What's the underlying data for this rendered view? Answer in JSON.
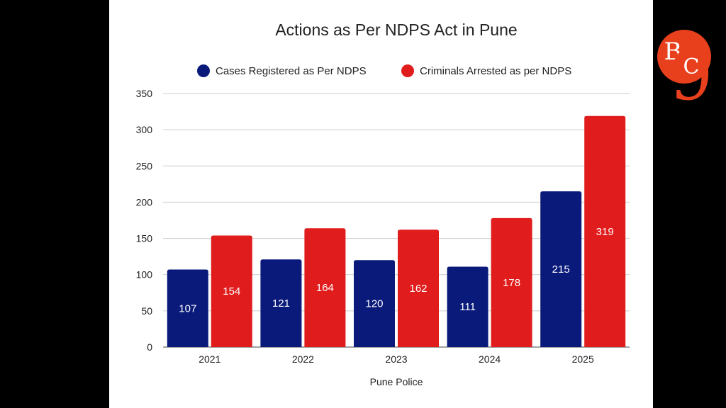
{
  "chart_data": {
    "type": "bar",
    "title": "Actions as Per NDPS Act in Pune",
    "xlabel": "Pune Police",
    "ylabel": "",
    "categories": [
      "2021",
      "2022",
      "2023",
      "2024",
      "2025"
    ],
    "series": [
      {
        "name": "Cases Registered as Per NDPS",
        "values": [
          107,
          121,
          120,
          111,
          215
        ],
        "color": "#0a1a7a"
      },
      {
        "name": "Criminals Arrested as per NDPS",
        "values": [
          154,
          164,
          162,
          178,
          319
        ],
        "color": "#e01c1c"
      }
    ],
    "ylim": [
      0,
      350
    ],
    "yticks": [
      0,
      50,
      100,
      150,
      200,
      250,
      300,
      350
    ],
    "grid": true,
    "legend_position": "top"
  },
  "logo": {
    "text_b": "B",
    "text_c": "C",
    "text_9": "9",
    "color": "#e8401c"
  }
}
